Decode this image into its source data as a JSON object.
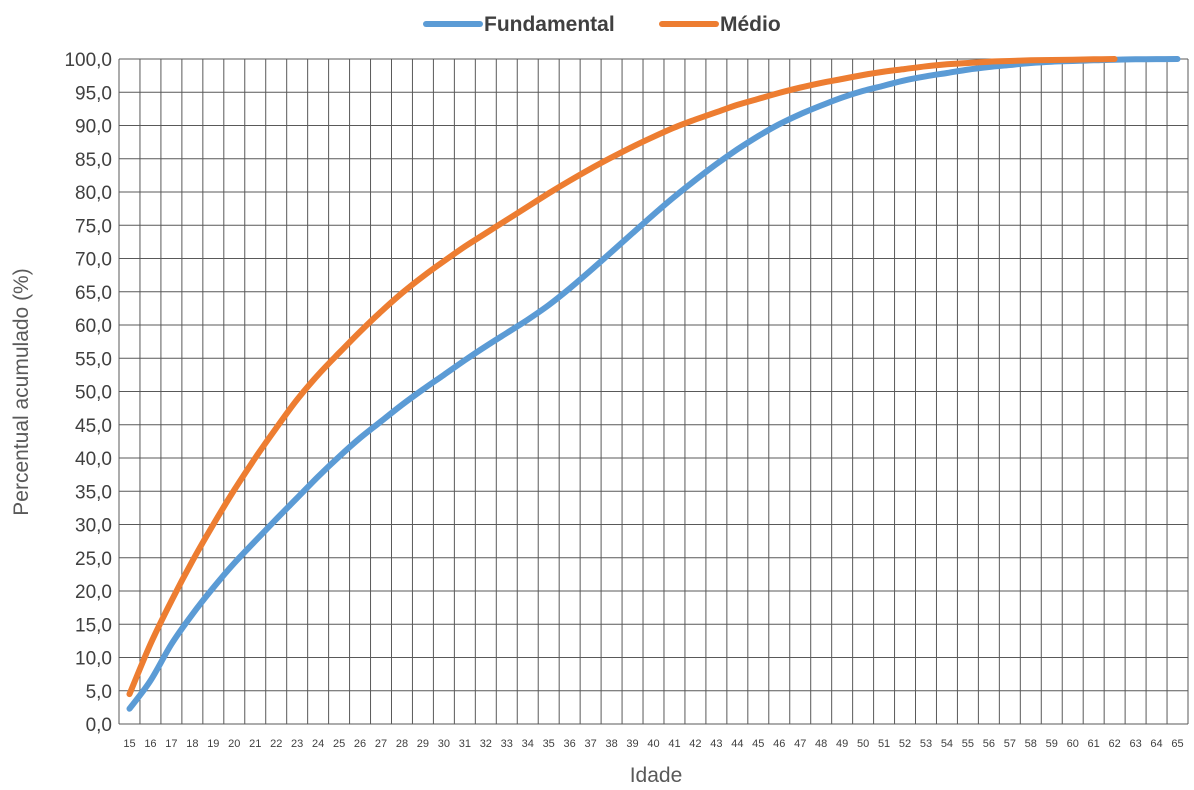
{
  "chart_data": {
    "type": "line",
    "title": "",
    "xlabel": "Idade",
    "ylabel": "Percentual acumulado (%)",
    "x": [
      15,
      16,
      17,
      18,
      19,
      20,
      21,
      22,
      23,
      24,
      25,
      26,
      27,
      28,
      29,
      30,
      31,
      32,
      33,
      34,
      35,
      36,
      37,
      38,
      39,
      40,
      41,
      42,
      43,
      44,
      45,
      46,
      47,
      48,
      49,
      50,
      51,
      52,
      53,
      54,
      55,
      56,
      57,
      58,
      59,
      60,
      61,
      62,
      63,
      64,
      65
    ],
    "x_tick_labels": [
      "15",
      "16",
      "17",
      "18",
      "19",
      "20",
      "21",
      "22",
      "23",
      "24",
      "25",
      "26",
      "27",
      "28",
      "29",
      "30",
      "31",
      "32",
      "33",
      "34",
      "35",
      "36",
      "37",
      "38",
      "39",
      "40",
      "41",
      "42",
      "43",
      "44",
      "45",
      "46",
      "47",
      "48",
      "49",
      "50",
      "51",
      "52",
      "53",
      "54",
      "55",
      "56",
      "57",
      "58",
      "59",
      "60",
      "61",
      "62",
      "63",
      "64",
      "65"
    ],
    "y_tick_labels": [
      "0,0",
      "5,0",
      "10,0",
      "15,0",
      "20,0",
      "25,0",
      "30,0",
      "35,0",
      "40,0",
      "45,0",
      "50,0",
      "55,0",
      "60,0",
      "65,0",
      "70,0",
      "75,0",
      "80,0",
      "85,0",
      "90,0",
      "95,0",
      "100,0"
    ],
    "ylim": [
      0,
      100
    ],
    "y_step": 5,
    "grid": true,
    "legend_position": "top-center",
    "series": [
      {
        "name": "Fundamental",
        "color": "#5B9BD5",
        "x": [
          15,
          16,
          17,
          18,
          19,
          20,
          21,
          22,
          23,
          24,
          25,
          26,
          27,
          28,
          29,
          30,
          31,
          32,
          33,
          34,
          35,
          36,
          37,
          38,
          39,
          40,
          41,
          42,
          43,
          44,
          45,
          46,
          47,
          48,
          49,
          50,
          51,
          52,
          53,
          54,
          55,
          56,
          57,
          58,
          59,
          60,
          61,
          62,
          63,
          64,
          65
        ],
        "values": [
          2.3,
          6.5,
          12.0,
          16.5,
          20.5,
          24.2,
          27.5,
          30.8,
          34.0,
          37.2,
          40.2,
          43.0,
          45.5,
          48.0,
          50.3,
          52.5,
          54.7,
          56.8,
          58.8,
          60.8,
          63.0,
          65.5,
          68.2,
          71.0,
          73.8,
          76.6,
          79.3,
          81.8,
          84.2,
          86.4,
          88.4,
          90.2,
          91.7,
          93.0,
          94.2,
          95.2,
          96.0,
          96.8,
          97.4,
          97.9,
          98.4,
          98.8,
          99.1,
          99.4,
          99.6,
          99.7,
          99.8,
          99.9,
          99.95,
          99.98,
          100.0
        ]
      },
      {
        "name": "Médio",
        "color": "#ED7D31",
        "x": [
          15,
          16,
          17,
          18,
          19,
          20,
          21,
          22,
          23,
          24,
          25,
          26,
          27,
          28,
          29,
          30,
          31,
          32,
          33,
          34,
          35,
          36,
          37,
          38,
          39,
          40,
          41,
          42,
          43,
          44,
          45,
          46,
          47,
          48,
          49,
          50,
          51,
          52,
          53,
          54,
          55,
          56,
          57,
          58,
          59,
          60,
          61,
          62
        ],
        "values": [
          4.5,
          12.0,
          18.5,
          24.5,
          30.0,
          35.2,
          40.0,
          44.5,
          48.8,
          52.5,
          55.8,
          59.0,
          62.0,
          64.8,
          67.3,
          69.6,
          71.8,
          73.8,
          75.8,
          77.8,
          79.8,
          81.7,
          83.5,
          85.2,
          86.8,
          88.3,
          89.7,
          90.9,
          92.0,
          93.1,
          94.0,
          94.9,
          95.7,
          96.4,
          97.0,
          97.6,
          98.1,
          98.5,
          98.9,
          99.2,
          99.4,
          99.6,
          99.7,
          99.8,
          99.85,
          99.9,
          99.95,
          100.0
        ]
      }
    ]
  }
}
